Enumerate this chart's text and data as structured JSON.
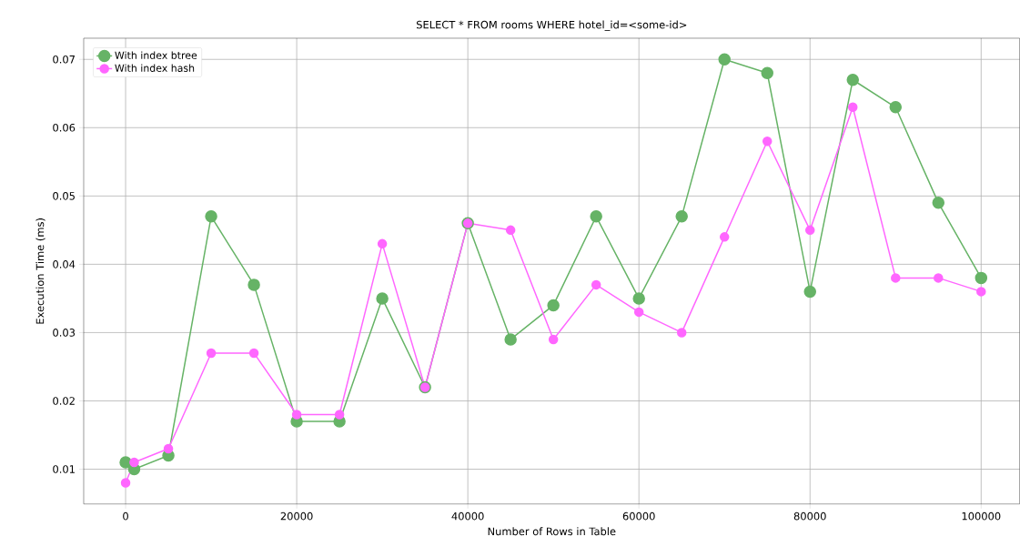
{
  "chart_data": {
    "type": "line",
    "title": "SELECT * FROM rooms WHERE hotel_id=<some-id>",
    "xlabel": "Number of Rows in Table",
    "ylabel": "Execution Time (ms)",
    "x": [
      0,
      1000,
      5000,
      10000,
      15000,
      20000,
      25000,
      30000,
      35000,
      40000,
      45000,
      50000,
      55000,
      60000,
      65000,
      70000,
      75000,
      80000,
      85000,
      90000,
      95000,
      100000
    ],
    "series": [
      {
        "name": "With index btree",
        "color": "#66b366",
        "values": [
          0.011,
          0.01,
          0.012,
          0.047,
          0.037,
          0.017,
          0.017,
          0.035,
          0.022,
          0.046,
          0.029,
          0.034,
          0.047,
          0.035,
          0.047,
          0.07,
          0.068,
          0.036,
          0.067,
          0.063,
          0.049,
          0.038
        ]
      },
      {
        "name": "With index hash",
        "color": "#ff66ff",
        "values": [
          0.008,
          0.011,
          0.013,
          0.027,
          0.027,
          0.018,
          0.018,
          0.043,
          0.022,
          0.046,
          0.045,
          0.029,
          0.037,
          0.033,
          0.03,
          0.044,
          0.058,
          0.045,
          0.063,
          0.038,
          0.038,
          0.036
        ]
      }
    ],
    "xlim": [
      -4900,
      104500
    ],
    "ylim": [
      0.0049,
      0.0731
    ],
    "xticks": [
      0,
      20000,
      40000,
      60000,
      80000,
      100000
    ],
    "yticks": [
      0.01,
      0.02,
      0.03,
      0.04,
      0.05,
      0.06,
      0.07
    ],
    "grid": true,
    "legend": "top left",
    "marker": "circle",
    "line_style": "solid"
  }
}
